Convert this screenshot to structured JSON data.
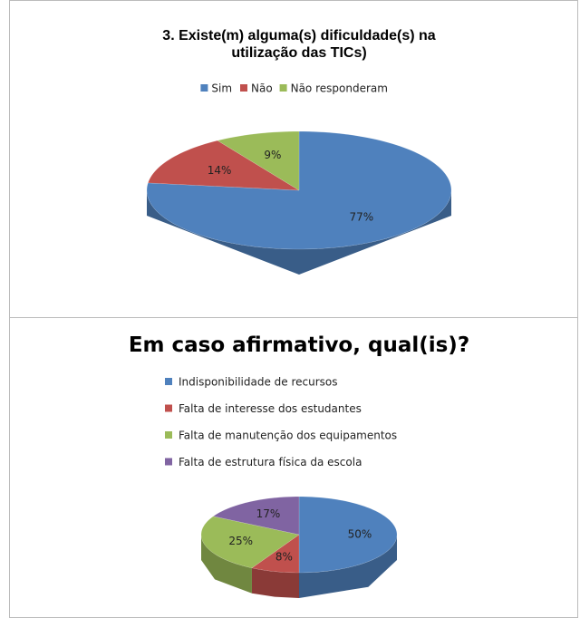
{
  "chart_data": [
    {
      "type": "pie",
      "title": "3. Existe(m) alguma(s) dificuldade(s) na utilização das TICs)",
      "categories": [
        "Sim",
        "Não",
        "Não responderam"
      ],
      "values": [
        77,
        14,
        9
      ],
      "value_labels": [
        "77%",
        "14%",
        "9%"
      ],
      "colors": [
        "#4f81bd",
        "#c0504d",
        "#9bbb59"
      ],
      "legend": "top"
    },
    {
      "type": "pie",
      "title": "Em caso afirmativo, qual(is)?",
      "categories": [
        "Indisponibilidade de recursos",
        "Falta de interesse dos estudantes",
        "Falta de manutenção dos equipamentos",
        "Falta de estrutura física da escola"
      ],
      "values": [
        50,
        8,
        25,
        17
      ],
      "value_labels": [
        "50%",
        "8%",
        "25%",
        "17%"
      ],
      "colors": [
        "#4f81bd",
        "#c0504d",
        "#9bbb59",
        "#8064a2"
      ],
      "legend": "left"
    }
  ]
}
